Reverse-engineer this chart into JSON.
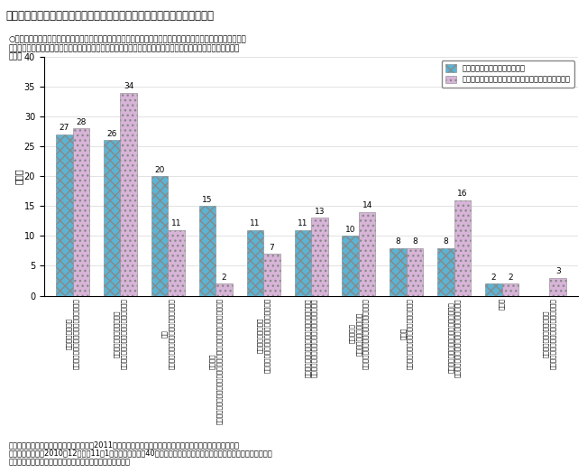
{
  "title": "第２－（４）－４図　管理職層で特に重要な役割と達成できていない役割",
  "sub1": "○　現在、重要度が高いが、自社の管理職層が達成できていないこととして、「部下のキャリア・将来を見据えて",
  "sub2": "必要な指導・育成をする」「経営環境の変化を踏まえた新しい事業や仕組みを自ら企画立案する」が多くあげら",
  "sub3": "れる。",
  "ylabel": "（人）",
  "legend1": "現在、重要度が高いと思うもの",
  "legend2": "現在、自社の管理職層が達成できていないと思うもの",
  "color1": "#5bb4d4",
  "color2": "#d8b4d8",
  "src1": "資料出所　（一社）日本経済団体連合会（2011）「ミドルマネジャーの現状課題の把握等に関する調査結果」",
  "src2": "（注）　同調査（2010年12月から11年1月に実施）では、40歳前後の中間管理職の現状課題を把握するため、経営トッ",
  "src3": "　　　プ・人事労務担当役員に対して調査を実施している。",
  "values1": [
    27,
    26,
    20,
    15,
    11,
    11,
    10,
    8,
    8,
    2,
    0
  ],
  "values2": [
    28,
    34,
    11,
    2,
    7,
    13,
    14,
    8,
    16,
    2,
    3
  ],
  "xlabels": [
    "指導・育成をする\n部下のキャリア・将来を見据えて必要な",
    "仕組みを自ら企画立案する\n経営環境の変化を踏まえた新しい事業や",
    "する\n組織や部署が直面する様々な課題を解決",
    "を上げる\n部署の目標達成のために、自らも一人のプレーヤーとなり、仕事の成果",
    "進捗状況を管理する\n部下に必要な業務指示・指導を行い、その",
    "に明確にして部下に伝え、部下の行動を導く\n相織の上層部や相織外からの情報を自分なり",
    "を構築する\n配分し、最適な戦場体制\n戦場の経営資源（ヒト、モノ、カネ）を",
    "つくる\n部下を動機づけし、職場に良い雰囲気を",
    "の動向などの情報を収集し業務に活かす\n顧客のニーズや世間のトレンド、マーケット",
    "その他",
    "問い合わせなどに対応する\n戦場の代表として、社内外からの業成や"
  ]
}
